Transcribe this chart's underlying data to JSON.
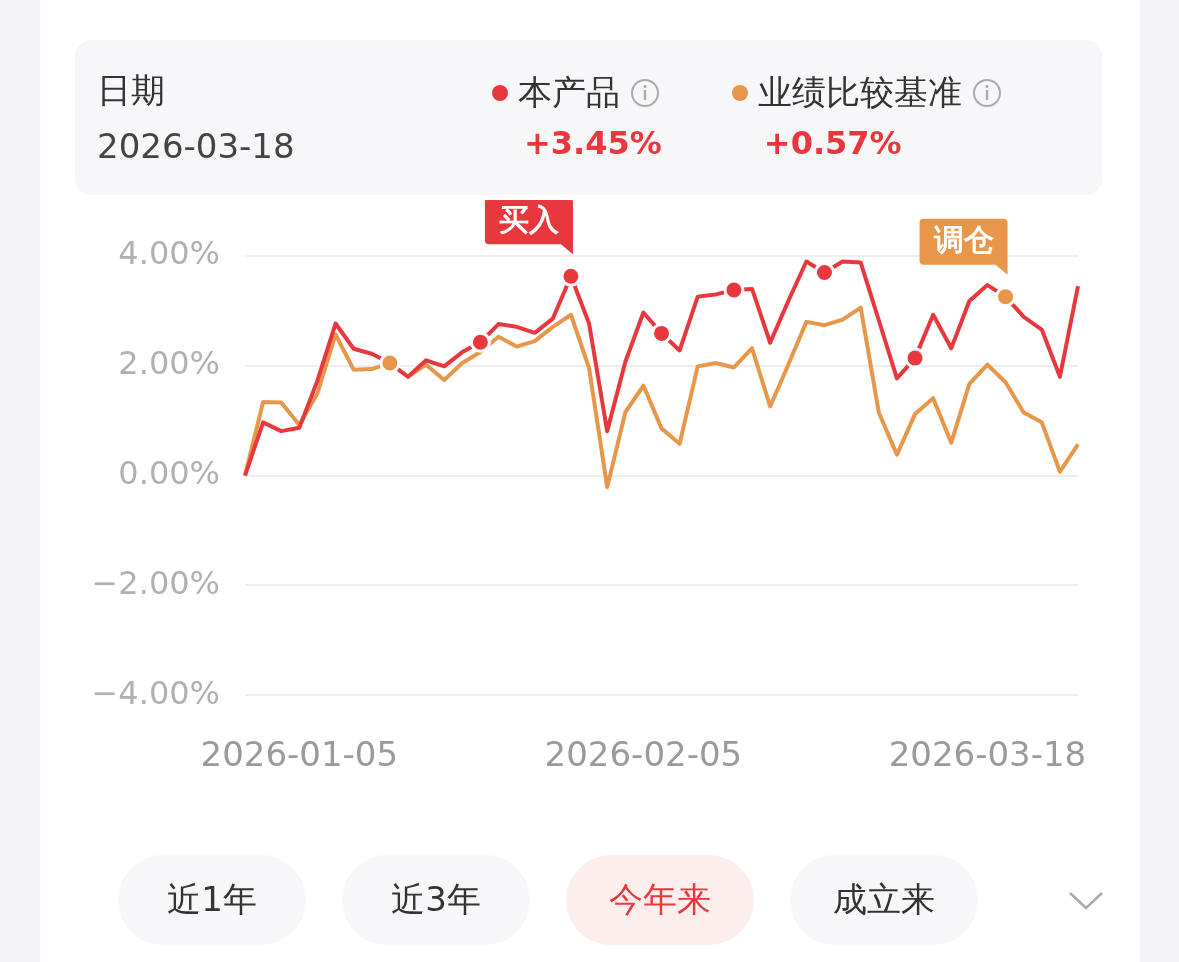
{
  "chart_data": {
    "type": "line",
    "title": "日期",
    "subtitle": "2026-03-18",
    "categories": [
      null,
      null,
      null,
      "2026-01-05",
      null,
      null,
      null,
      null,
      null,
      null,
      null,
      null,
      null,
      null,
      null,
      null,
      null,
      null,
      null,
      null,
      null,
      null,
      "2026-02-05",
      null,
      null,
      null,
      null,
      null,
      null,
      null,
      null,
      null,
      null,
      null,
      null,
      null,
      null,
      null,
      null,
      null,
      null,
      "2026-03-18",
      null,
      null,
      null,
      null,
      null
    ],
    "series": [
      {
        "name": "本产品",
        "color": "#e8383d",
        "values": [
          0,
          0.97,
          0.81,
          0.87,
          1.73,
          2.77,
          2.31,
          2.22,
          2.05,
          1.8,
          2.1,
          1.99,
          2.25,
          2.43,
          2.76,
          2.71,
          2.6,
          2.86,
          3.63,
          2.77,
          0.81,
          2.07,
          2.97,
          2.59,
          2.28,
          3.26,
          3.3,
          3.38,
          3.4,
          2.42,
          3.18,
          3.9,
          3.7,
          3.9,
          3.88,
          2.83,
          1.77,
          2.14,
          2.93,
          2.32,
          3.18,
          3.47,
          3.26,
          2.89,
          2.66,
          1.8,
          3.45
        ]
      },
      {
        "name": "业绩比较基准",
        "color": "#e8974a",
        "values": [
          0,
          1.34,
          1.33,
          0.92,
          1.5,
          2.57,
          1.93,
          1.94,
          2.05,
          1.8,
          2.02,
          1.74,
          2.05,
          2.25,
          2.53,
          2.35,
          2.45,
          2.71,
          2.93,
          1.96,
          -0.21,
          1.15,
          1.64,
          0.86,
          0.58,
          1.99,
          2.05,
          1.97,
          2.32,
          1.26,
          2.02,
          2.8,
          2.74,
          2.84,
          3.06,
          1.15,
          0.38,
          1.12,
          1.41,
          0.6,
          1.67,
          2.02,
          1.7,
          1.15,
          0.97,
          0.07,
          0.57
        ]
      },
      {
        "type": "scatter",
        "color": "#e8383d",
        "values": [
          null,
          null,
          null,
          null,
          null,
          null,
          null,
          null,
          null,
          null,
          null,
          null,
          null,
          null,
          null,
          null,
          null,
          null,
          3.63,
          null,
          null,
          null,
          null,
          null,
          null,
          null,
          null,
          null,
          null,
          null,
          null,
          null,
          null,
          null,
          null,
          null,
          null,
          null,
          null,
          null,
          null,
          null,
          null,
          null,
          null,
          null,
          null
        ]
      },
      {
        "type": "scatter",
        "color": "#e8974a",
        "values": [
          null,
          null,
          null,
          null,
          null,
          null,
          null,
          null,
          2.05,
          null,
          null,
          null,
          null,
          null,
          null,
          null,
          null,
          null,
          null,
          null,
          null,
          null,
          null,
          null,
          null,
          null,
          null,
          null,
          null,
          null,
          null,
          null,
          null,
          null,
          null,
          null,
          null,
          null,
          null,
          null,
          null,
          null,
          3.26,
          null,
          null,
          null,
          null
        ]
      },
      {
        "type": "scatter",
        "color": "#e8383d",
        "values": [
          null,
          null,
          null,
          null,
          null,
          null,
          null,
          null,
          null,
          null,
          null,
          null,
          null,
          2.43,
          null,
          null,
          null,
          null,
          null,
          null,
          null,
          null,
          null,
          2.59,
          null,
          null,
          null,
          3.38,
          null,
          null,
          null,
          null,
          3.7,
          null,
          null,
          null,
          null,
          2.14,
          null,
          null,
          null,
          null,
          null,
          null,
          null,
          null,
          null
        ]
      }
    ],
    "ylim": [
      -4,
      4
    ],
    "yticks": [
      {
        "value": -4,
        "label": "−4.00%"
      },
      {
        "value": -2,
        "label": "−2.00%"
      },
      {
        "value": 0,
        "label": "0.00%"
      },
      {
        "value": 2,
        "label": "2.00%"
      },
      {
        "value": 4,
        "label": "4.00%"
      }
    ],
    "grid": "y",
    "legend": "top",
    "annotations": [
      "+3.45%",
      "+0.57%",
      "买入",
      "调仓",
      "近1年",
      "近3年",
      "今年来",
      "成立来"
    ]
  }
}
